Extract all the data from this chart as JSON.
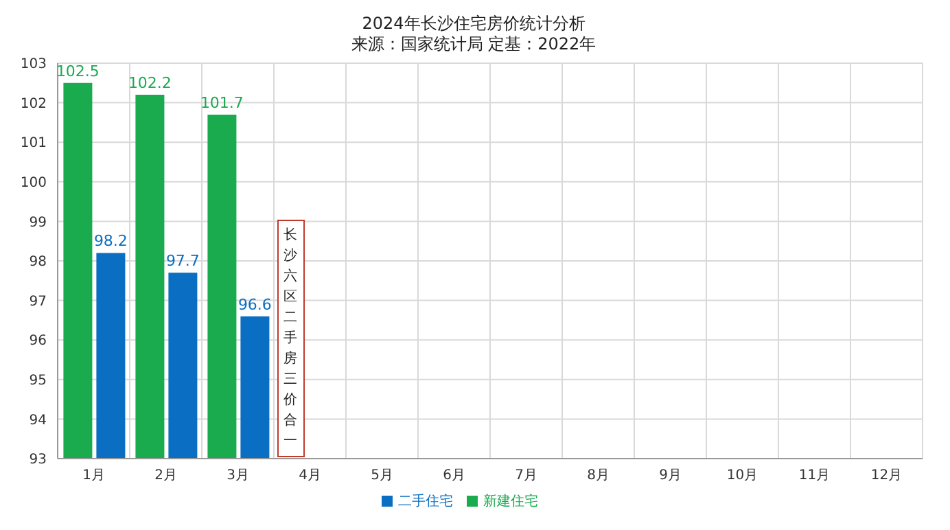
{
  "chart_data": {
    "type": "bar",
    "title": "2024年长沙住宅房价统计分析",
    "subtitle": "来源：国家统计局 定基：2022年",
    "categories": [
      "1月",
      "2月",
      "3月",
      "4月",
      "5月",
      "6月",
      "7月",
      "8月",
      "9月",
      "10月",
      "11月",
      "12月"
    ],
    "series": [
      {
        "name": "新建住宅",
        "color": "#1aab4f",
        "values": [
          102.5,
          102.2,
          101.7,
          null,
          null,
          null,
          null,
          null,
          null,
          null,
          null,
          null
        ]
      },
      {
        "name": "二手住宅",
        "color": "#0a6fc2",
        "values": [
          98.2,
          97.7,
          96.6,
          null,
          null,
          null,
          null,
          null,
          null,
          null,
          null,
          null
        ]
      }
    ],
    "ylim": [
      93,
      103
    ],
    "yticks": [
      93,
      94,
      95,
      96,
      97,
      98,
      99,
      100,
      101,
      102,
      103
    ],
    "grid": true,
    "legend": "bottom",
    "data_labels": true,
    "annotations": [
      "长沙六区二手房三价合一"
    ]
  }
}
